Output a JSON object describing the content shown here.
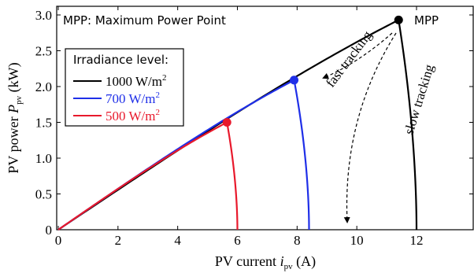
{
  "chart_data": {
    "type": "line",
    "title": "",
    "xlabel": {
      "main": "PV current ",
      "var": "i",
      "sub": "pv",
      "unit": " (A)"
    },
    "ylabel": {
      "main": "PV power ",
      "var": "P",
      "sub": "pv",
      "unit": " (kW)"
    },
    "xlim": [
      0,
      14
    ],
    "ylim": [
      0,
      3.0
    ],
    "xticks": [
      0,
      2,
      4,
      6,
      8,
      10,
      12
    ],
    "yticks": [
      0,
      0.5,
      1.0,
      1.5,
      2.0,
      2.5,
      3.0
    ],
    "xtick_labels": [
      "0",
      "2",
      "4",
      "6",
      "8",
      "10",
      "12"
    ],
    "ytick_labels": [
      "0",
      "0.5",
      "1.0",
      "1.5",
      "2.0",
      "2.5",
      "3.0"
    ],
    "grid": false,
    "legend_title": "Irradiance level:",
    "legend_position": "upper-left",
    "series": [
      {
        "name": "1000 W/m",
        "sup": "2",
        "color": "#000000",
        "isc": 12.0,
        "impp": 11.4,
        "pmpp": 2.93
      },
      {
        "name": "700 W/m",
        "sup": "2",
        "color": "#1f2fe8",
        "isc": 8.4,
        "impp": 7.9,
        "pmpp": 2.09
      },
      {
        "name": "500 W/m",
        "sup": "2",
        "color": "#e8192c",
        "isc": 6.0,
        "impp": 5.65,
        "pmpp": 1.5
      }
    ],
    "annotations": {
      "mpp_note": "MPP: Maximum Power Point",
      "mpp_label": "MPP",
      "fast_tracking": "fast tracking",
      "slow_tracking": "slow tracking"
    }
  }
}
